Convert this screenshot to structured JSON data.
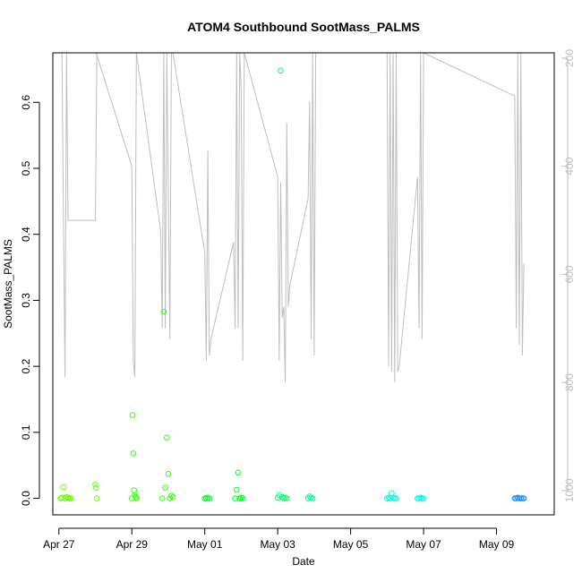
{
  "chart_data": {
    "type": "scatter",
    "title": "ATOM4 Southbound SootMass_PALMS",
    "xlabel": "Date",
    "ylabel": "SootMass_PALMS",
    "xlim": [
      "2018-04-26T20:00",
      "2018-05-10T14:00"
    ],
    "ylim": [
      -0.025,
      0.675
    ],
    "x_ticks": [
      {
        "date": "2018-04-27",
        "label": "Apr 27"
      },
      {
        "date": "2018-04-29",
        "label": "Apr 29"
      },
      {
        "date": "2018-05-01",
        "label": "May 01"
      },
      {
        "date": "2018-05-03",
        "label": "May 03"
      },
      {
        "date": "2018-05-05",
        "label": "May 05"
      },
      {
        "date": "2018-05-07",
        "label": "May 07"
      },
      {
        "date": "2018-05-09",
        "label": "May 09"
      }
    ],
    "y_ticks": [
      0.0,
      0.1,
      0.2,
      0.3,
      0.4,
      0.5,
      0.6
    ],
    "y_tick_labels": [
      "0.0",
      "0.1",
      "0.2",
      "0.3",
      "0.4",
      "0.5",
      "0.6"
    ],
    "secondary_axis": {
      "side": "right",
      "color": "#bebebe",
      "reversed": true,
      "ylim": [
        1045,
        190
      ],
      "ticks": [
        200,
        400,
        600,
        800,
        1000
      ],
      "tick_labels": [
        "200",
        "400",
        "600",
        "800",
        "1000"
      ]
    },
    "secondary_trace": {
      "color": "#bebebe",
      "points": [
        [
          "2018-04-27T02:00",
          190
        ],
        [
          "2018-04-27T03:00",
          500
        ],
        [
          "2018-04-27T04:00",
          790
        ],
        [
          "2018-04-27T05:00",
          190
        ],
        [
          "2018-04-27T06:00",
          500
        ],
        [
          "2018-04-28T00:00",
          500
        ],
        [
          "2018-04-28T01:00",
          190
        ],
        [
          "2018-04-28T00:30",
          190
        ],
        [
          "2018-04-29T00:00",
          400
        ],
        [
          "2018-04-29T01:00",
          760
        ],
        [
          "2018-04-29T02:00",
          790
        ],
        [
          "2018-04-29T03:00",
          190
        ],
        [
          "2018-04-29T19:00",
          520
        ],
        [
          "2018-04-29T20:00",
          700
        ],
        [
          "2018-04-29T21:00",
          190
        ],
        [
          "2018-04-29T22:00",
          700
        ],
        [
          "2018-04-29T23:00",
          190
        ],
        [
          "2018-04-30T01:00",
          720
        ],
        [
          "2018-04-30T02:00",
          190
        ],
        [
          "2018-04-30T03:00",
          190
        ],
        [
          "2018-05-01T00:00",
          560
        ],
        [
          "2018-05-01T01:00",
          760
        ],
        [
          "2018-05-01T02:00",
          370
        ],
        [
          "2018-05-01T03:00",
          750
        ],
        [
          "2018-05-01T04:00",
          720
        ],
        [
          "2018-05-01T19:00",
          540
        ],
        [
          "2018-05-01T20:00",
          700
        ],
        [
          "2018-05-01T21:00",
          190
        ],
        [
          "2018-05-01T22:00",
          700
        ],
        [
          "2018-05-01T23:00",
          190
        ],
        [
          "2018-05-02T00:00",
          260
        ],
        [
          "2018-05-02T01:00",
          760
        ],
        [
          "2018-05-02T02:00",
          190
        ],
        [
          "2018-05-03T00:00",
          420
        ],
        [
          "2018-05-03T01:00",
          760
        ],
        [
          "2018-05-03T02:00",
          430
        ],
        [
          "2018-05-03T03:00",
          680
        ],
        [
          "2018-05-03T04:00",
          660
        ],
        [
          "2018-05-03T05:00",
          800
        ],
        [
          "2018-05-03T06:00",
          320
        ],
        [
          "2018-05-03T07:00",
          660
        ],
        [
          "2018-05-03T08:00",
          620
        ],
        [
          "2018-05-03T20:00",
          460
        ],
        [
          "2018-05-03T21:00",
          280
        ],
        [
          "2018-05-03T22:00",
          720
        ],
        [
          "2018-05-03T23:00",
          190
        ],
        [
          "2018-05-04T00:00",
          750
        ],
        [
          "2018-05-04T01:00",
          190
        ],
        [
          "2018-05-06T00:00",
          190
        ],
        [
          "2018-05-06T01:00",
          770
        ],
        [
          "2018-05-06T02:00",
          190
        ],
        [
          "2018-05-06T03:00",
          780
        ],
        [
          "2018-05-06T04:00",
          190
        ],
        [
          "2018-05-06T05:00",
          800
        ],
        [
          "2018-05-06T06:00",
          190
        ],
        [
          "2018-05-06T07:00",
          780
        ],
        [
          "2018-05-06T08:00",
          770
        ],
        [
          "2018-05-06T20:00",
          420
        ],
        [
          "2018-05-06T21:00",
          700
        ],
        [
          "2018-05-06T22:00",
          190
        ],
        [
          "2018-05-06T23:00",
          720
        ],
        [
          "2018-05-07T00:00",
          190
        ],
        [
          "2018-05-09T12:00",
          270
        ],
        [
          "2018-05-09T13:00",
          700
        ],
        [
          "2018-05-09T14:00",
          190
        ],
        [
          "2018-05-09T15:00",
          730
        ],
        [
          "2018-05-09T16:00",
          190
        ],
        [
          "2018-05-09T17:00",
          750
        ],
        [
          "2018-05-09T18:00",
          580
        ]
      ]
    },
    "series": [
      {
        "color": "#66ff00",
        "points": [
          [
            "2018-04-27T01:00",
            0.0
          ],
          [
            "2018-04-27T02:00",
            0.001
          ],
          [
            "2018-04-27T03:00",
            0.017
          ],
          [
            "2018-04-27T04:00",
            0.0
          ],
          [
            "2018-04-27T05:00",
            0.002
          ],
          [
            "2018-04-27T06:00",
            0.001
          ],
          [
            "2018-04-27T07:00",
            0.0
          ],
          [
            "2018-04-27T08:00",
            0.0
          ],
          [
            "2018-04-28T00:00",
            0.021
          ],
          [
            "2018-04-28T00:30",
            0.016
          ],
          [
            "2018-04-28T01:00",
            0.0
          ]
        ]
      },
      {
        "color": "#33ff00",
        "points": [
          [
            "2018-04-29T00:00",
            0.0
          ],
          [
            "2018-04-29T00:30",
            0.126
          ],
          [
            "2018-04-29T01:00",
            0.068
          ],
          [
            "2018-04-29T01:30",
            0.012
          ],
          [
            "2018-04-29T02:00",
            0.005
          ],
          [
            "2018-04-29T02:30",
            0.002
          ],
          [
            "2018-04-29T03:00",
            0.0
          ],
          [
            "2018-04-29T20:00",
            0.0
          ],
          [
            "2018-04-29T21:00",
            0.283
          ],
          [
            "2018-04-29T22:00",
            0.016
          ],
          [
            "2018-04-29T23:00",
            0.092
          ],
          [
            "2018-04-30T00:00",
            0.037
          ],
          [
            "2018-04-30T01:00",
            0.0
          ],
          [
            "2018-04-30T02:00",
            0.004
          ],
          [
            "2018-04-30T03:00",
            0.002
          ]
        ]
      },
      {
        "color": "#00ff22",
        "points": [
          [
            "2018-05-01T00:00",
            0.0
          ],
          [
            "2018-05-01T01:00",
            0.0
          ],
          [
            "2018-05-01T02:00",
            0.001
          ],
          [
            "2018-05-01T03:00",
            0.0
          ],
          [
            "2018-05-01T20:00",
            0.0
          ],
          [
            "2018-05-01T21:00",
            0.013
          ],
          [
            "2018-05-01T22:00",
            0.039
          ],
          [
            "2018-05-01T23:00",
            0.0
          ],
          [
            "2018-05-02T00:00",
            0.001
          ],
          [
            "2018-05-02T01:00",
            0.0
          ]
        ]
      },
      {
        "color": "#00ff66",
        "points": [
          [
            "2018-05-03T00:00",
            0.001
          ],
          [
            "2018-05-03T01:00",
            0.005
          ],
          [
            "2018-05-03T02:00",
            0.648
          ],
          [
            "2018-05-03T03:00",
            0.002
          ],
          [
            "2018-05-03T04:00",
            0.0
          ],
          [
            "2018-05-03T05:00",
            0.001
          ],
          [
            "2018-05-03T06:00",
            0.0
          ]
        ]
      },
      {
        "color": "#00ff99",
        "points": [
          [
            "2018-05-03T20:00",
            0.0
          ],
          [
            "2018-05-03T21:00",
            0.003
          ],
          [
            "2018-05-03T22:00",
            0.001
          ],
          [
            "2018-05-03T23:00",
            0.0
          ]
        ]
      },
      {
        "color": "#00ffdd",
        "points": [
          [
            "2018-05-06T00:00",
            0.0
          ],
          [
            "2018-05-06T01:00",
            0.001
          ],
          [
            "2018-05-06T02:00",
            0.0
          ],
          [
            "2018-05-06T03:00",
            0.008
          ],
          [
            "2018-05-06T04:00",
            0.001
          ],
          [
            "2018-05-06T05:00",
            0.0
          ],
          [
            "2018-05-06T06:00",
            0.0
          ]
        ]
      },
      {
        "color": "#00ffee",
        "points": [
          [
            "2018-05-06T20:00",
            0.0
          ],
          [
            "2018-05-06T21:00",
            0.0
          ],
          [
            "2018-05-06T22:00",
            0.001
          ],
          [
            "2018-05-06T23:00",
            0.0
          ],
          [
            "2018-05-07T00:00",
            0.0
          ]
        ]
      },
      {
        "color": "#1e90ff",
        "points": [
          [
            "2018-05-09T12:00",
            0.0
          ],
          [
            "2018-05-09T13:00",
            0.0
          ],
          [
            "2018-05-09T14:00",
            0.001
          ],
          [
            "2018-05-09T15:00",
            0.0
          ],
          [
            "2018-05-09T16:00",
            0.0
          ],
          [
            "2018-05-09T17:00",
            0.0
          ],
          [
            "2018-05-09T18:00",
            0.0
          ]
        ]
      }
    ]
  }
}
